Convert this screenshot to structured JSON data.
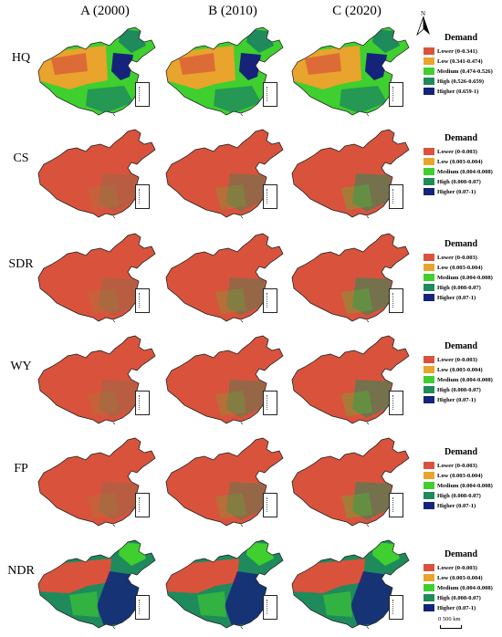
{
  "columns": [
    "A (2000)",
    "B (2010)",
    "C (2020)"
  ],
  "north_label": "N",
  "scale_label": "0    500 km",
  "colors": {
    "lower": "#d9533c",
    "low": "#e8a42c",
    "medium": "#3fcf2e",
    "high": "#1f8a5c",
    "higher": "#15237a"
  },
  "rows": [
    {
      "label": "HQ",
      "legend_title": "Demand",
      "legend": [
        {
          "label": "Lower (0-0.341)",
          "color": "#d9533c"
        },
        {
          "label": "Low (0.341-0.474)",
          "color": "#e8a42c"
        },
        {
          "label": "Medium (0.474-0.526)",
          "color": "#3fcf2e"
        },
        {
          "label": "High (0.526-0.659)",
          "color": "#1f8a5c"
        },
        {
          "label": "Higher (0.659-1)",
          "color": "#15237a"
        }
      ]
    },
    {
      "label": "CS",
      "legend_title": "Demand",
      "legend": [
        {
          "label": "Lower (0-0.003)",
          "color": "#d9533c"
        },
        {
          "label": "Low (0.003-0.004)",
          "color": "#e8a42c"
        },
        {
          "label": "Medium (0.004-0.008)",
          "color": "#3fcf2e"
        },
        {
          "label": "High (0.008-0.07)",
          "color": "#1f8a5c"
        },
        {
          "label": "Higher (0.07-1)",
          "color": "#15237a"
        }
      ]
    },
    {
      "label": "SDR",
      "legend_title": "Demand",
      "legend": [
        {
          "label": "Lower (0-0.003)",
          "color": "#d9533c"
        },
        {
          "label": "Low (0.003-0.004)",
          "color": "#e8a42c"
        },
        {
          "label": "Medium (0.004-0.008)",
          "color": "#3fcf2e"
        },
        {
          "label": "High (0.008-0.07)",
          "color": "#1f8a5c"
        },
        {
          "label": "Higher (0.07-1)",
          "color": "#15237a"
        }
      ]
    },
    {
      "label": "WY",
      "legend_title": "Demand",
      "legend": [
        {
          "label": "Lower (0-0.003)",
          "color": "#d9533c"
        },
        {
          "label": "Low (0.003-0.004)",
          "color": "#e8a42c"
        },
        {
          "label": "Medium (0.004-0.008)",
          "color": "#3fcf2e"
        },
        {
          "label": "High (0.008-0.07)",
          "color": "#1f8a5c"
        },
        {
          "label": "Higher (0.07-1)",
          "color": "#15237a"
        }
      ]
    },
    {
      "label": "FP",
      "legend_title": "Demand",
      "legend": [
        {
          "label": "Lower (0-0.003)",
          "color": "#d9533c"
        },
        {
          "label": "Low (0.003-0.004)",
          "color": "#e8a42c"
        },
        {
          "label": "Medium (0.004-0.008)",
          "color": "#3fcf2e"
        },
        {
          "label": "High (0.008-0.07)",
          "color": "#1f8a5c"
        },
        {
          "label": "Higher (0.07-1)",
          "color": "#15237a"
        }
      ]
    },
    {
      "label": "NDR",
      "legend_title": "Demand",
      "legend": [
        {
          "label": "Lower (0-0.003)",
          "color": "#d9533c"
        },
        {
          "label": "Low (0.003-0.004)",
          "color": "#e8a42c"
        },
        {
          "label": "Medium (0.004-0.008)",
          "color": "#3fcf2e"
        },
        {
          "label": "High (0.008-0.07)",
          "color": "#1f8a5c"
        },
        {
          "label": "Higher (0.07-1)",
          "color": "#15237a"
        }
      ]
    }
  ]
}
